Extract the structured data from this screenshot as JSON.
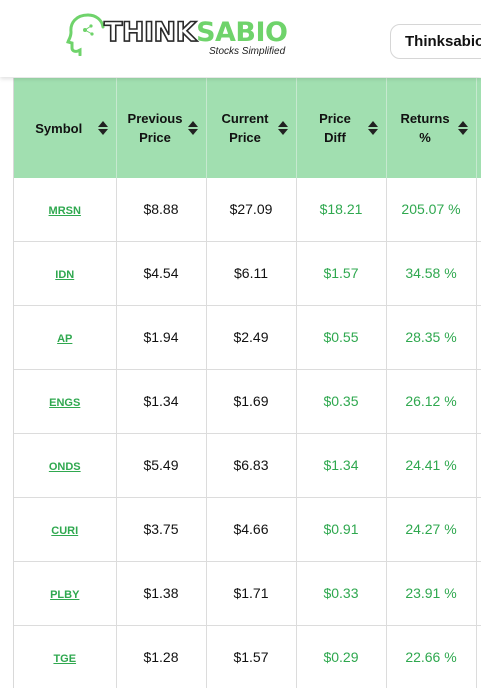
{
  "header": {
    "logo": {
      "word_think": "THINK",
      "word_sabio": "SABIO",
      "tagline": "Stocks Simplified"
    },
    "brand_button": "Thinksabio"
  },
  "table": {
    "columns": [
      {
        "label_line1": "Symbol",
        "label_line2": ""
      },
      {
        "label_line1": "Previous",
        "label_line2": "Price"
      },
      {
        "label_line1": "Current",
        "label_line2": "Price"
      },
      {
        "label_line1": "Price",
        "label_line2": "Diff"
      },
      {
        "label_line1": "Returns",
        "label_line2": "%"
      }
    ],
    "rows": [
      {
        "symbol": "MRSN",
        "previous": "$8.88",
        "current": "$27.09",
        "diff": "$18.21",
        "returns": "205.07 %"
      },
      {
        "symbol": "IDN",
        "previous": "$4.54",
        "current": "$6.11",
        "diff": "$1.57",
        "returns": "34.58 %"
      },
      {
        "symbol": "AP",
        "previous": "$1.94",
        "current": "$2.49",
        "diff": "$0.55",
        "returns": "28.35 %"
      },
      {
        "symbol": "ENGS",
        "previous": "$1.34",
        "current": "$1.69",
        "diff": "$0.35",
        "returns": "26.12 %"
      },
      {
        "symbol": "ONDS",
        "previous": "$5.49",
        "current": "$6.83",
        "diff": "$1.34",
        "returns": "24.41 %"
      },
      {
        "symbol": "CURI",
        "previous": "$3.75",
        "current": "$4.66",
        "diff": "$0.91",
        "returns": "24.27 %"
      },
      {
        "symbol": "PLBY",
        "previous": "$1.38",
        "current": "$1.71",
        "diff": "$0.33",
        "returns": "23.91 %"
      },
      {
        "symbol": "TGE",
        "previous": "$1.28",
        "current": "$1.57",
        "diff": "$0.29",
        "returns": "22.66 %"
      }
    ]
  },
  "colors": {
    "header_green": "#a1dfb0",
    "gain_green": "#2fa84f",
    "brand_green": "#6fd36b"
  }
}
